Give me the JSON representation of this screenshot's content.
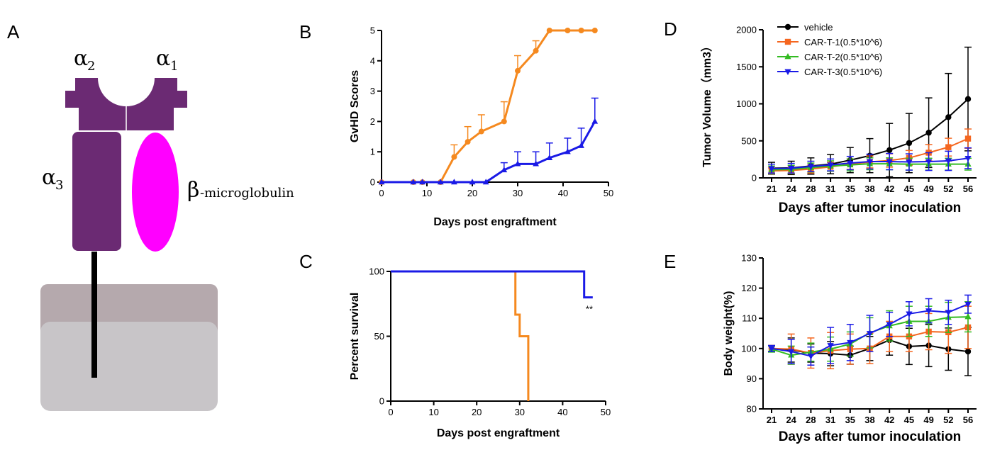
{
  "panels": {
    "A": "A",
    "B": "B",
    "C": "C",
    "D": "D",
    "E": "E"
  },
  "diagram": {
    "alpha1": "α",
    "alpha1_sub": "1",
    "alpha2": "α",
    "alpha2_sub": "2",
    "alpha3": "α",
    "alpha3_sub": "3",
    "beta_glyph": "β",
    "beta_text": "-microglobulin",
    "colors": {
      "heavy_chain": "#6b2a73",
      "beta2m": "#ff00ff",
      "membrane_top": "#b5a9ad",
      "membrane_bottom": "#c8c5c8",
      "stalk": "#000000"
    }
  },
  "chart_data": [
    {
      "id": "B",
      "type": "line",
      "xlabel": "Days post engraftment",
      "ylabel": "GvHD Scores",
      "xlim": [
        0,
        50
      ],
      "ylim": [
        0,
        5
      ],
      "xticks": [
        "0",
        "10",
        "20",
        "30",
        "40",
        "50"
      ],
      "yticks": [
        "0",
        "1",
        "2",
        "3",
        "4",
        "5"
      ],
      "series": [
        {
          "color": "#f5891f",
          "marker": "circle",
          "x": [
            0,
            7,
            9,
            13,
            16,
            19,
            22,
            27,
            30,
            34,
            37,
            41,
            44,
            47
          ],
          "y": [
            0,
            0,
            0,
            0,
            0.83,
            1.33,
            1.67,
            2.0,
            3.67,
            4.33,
            5,
            5,
            5,
            5
          ],
          "err": [
            0,
            0,
            0,
            0,
            0.4,
            0.5,
            0.55,
            0.65,
            0.5,
            0.33,
            0,
            0,
            0,
            0
          ]
        },
        {
          "color": "#1a1ae6",
          "marker": "triangle-up",
          "x": [
            0,
            7,
            9,
            13,
            16,
            20,
            23,
            27,
            30,
            34,
            37,
            41,
            44,
            47
          ],
          "y": [
            0,
            0,
            0,
            0,
            0,
            0,
            0,
            0.4,
            0.6,
            0.6,
            0.8,
            1.0,
            1.2,
            2.0
          ],
          "err": [
            0,
            0,
            0,
            0,
            0,
            0,
            0,
            0.24,
            0.4,
            0.4,
            0.49,
            0.45,
            0.58,
            0.77
          ]
        }
      ]
    },
    {
      "id": "C",
      "type": "line",
      "xlabel": "Days post engraftment",
      "ylabel": "Percent survival",
      "xlim": [
        0,
        50
      ],
      "ylim": [
        0,
        100
      ],
      "xticks": [
        "0",
        "10",
        "20",
        "30",
        "40",
        "50"
      ],
      "yticks": [
        "0",
        "50",
        "100"
      ],
      "annotation": "**",
      "series": [
        {
          "color": "#f5891f",
          "step": true,
          "x": [
            0,
            29,
            29,
            30,
            30,
            32,
            32
          ],
          "y": [
            100,
            100,
            66.7,
            66.7,
            50,
            50,
            0
          ]
        },
        {
          "color": "#1a1ae6",
          "step": true,
          "x": [
            0,
            45,
            45,
            47
          ],
          "y": [
            100,
            100,
            80,
            80
          ]
        }
      ]
    },
    {
      "id": "D",
      "type": "line",
      "xlabel": "Days after tumor inoculation",
      "ylabel": "Tumor Volume（mm3）",
      "categories": [
        "21",
        "24",
        "28",
        "31",
        "35",
        "38",
        "42",
        "45",
        "49",
        "52",
        "56"
      ],
      "ylim": [
        0,
        2000
      ],
      "yticks": [
        "0",
        "500",
        "1000",
        "1500",
        "2000"
      ],
      "legend_position": "top-left",
      "series": [
        {
          "name": "vehicle",
          "color": "#000000",
          "marker": "circle",
          "values": [
            130,
            135,
            160,
            185,
            240,
            300,
            375,
            470,
            610,
            820,
            1065
          ],
          "err": [
            80,
            90,
            110,
            130,
            170,
            230,
            360,
            400,
            470,
            590,
            700
          ]
        },
        {
          "name": "CAR-T-1(0.5*10^6)",
          "color": "#f5661f",
          "marker": "square",
          "values": [
            95,
            100,
            120,
            150,
            185,
            215,
            235,
            270,
            340,
            415,
            530
          ],
          "err": [
            40,
            45,
            55,
            60,
            70,
            80,
            90,
            100,
            110,
            120,
            130
          ]
        },
        {
          "name": "CAR-T-2(0.5*10^6)",
          "color": "#33bb22",
          "marker": "triangle-up",
          "values": [
            110,
            115,
            140,
            160,
            175,
            190,
            190,
            185,
            185,
            185,
            185
          ],
          "err": [
            50,
            55,
            60,
            70,
            80,
            80,
            80,
            80,
            80,
            80,
            80
          ]
        },
        {
          "name": "CAR-T-3(0.5*10^6)",
          "color": "#1a1ae6",
          "marker": "triangle-down",
          "values": [
            125,
            130,
            155,
            175,
            200,
            220,
            220,
            215,
            220,
            230,
            265
          ],
          "err": [
            60,
            65,
            70,
            80,
            90,
            100,
            110,
            110,
            120,
            130,
            140
          ]
        }
      ]
    },
    {
      "id": "E",
      "type": "line",
      "xlabel": "Days after tumor inoculation",
      "ylabel": "Body weight(%)",
      "categories": [
        "21",
        "24",
        "28",
        "31",
        "35",
        "38",
        "42",
        "45",
        "49",
        "52",
        "56"
      ],
      "ylim": [
        80,
        130
      ],
      "yticks": [
        "80",
        "90",
        "100",
        "110",
        "120",
        "130"
      ],
      "series": [
        {
          "name": "vehicle",
          "color": "#000000",
          "marker": "circle",
          "values": [
            100,
            99.5,
            98.5,
            98.3,
            97.8,
            100,
            102.8,
            100.7,
            101,
            99.8,
            99
          ],
          "err": [
            1,
            4,
            3,
            4,
            3,
            4,
            5,
            6,
            7,
            7,
            8
          ]
        },
        {
          "name": "CAR-T-1(0.5*10^6)",
          "color": "#f5661f",
          "marker": "square",
          "values": [
            100,
            99.8,
            98.5,
            99.3,
            99.8,
            100,
            104,
            104,
            105.6,
            105.4,
            107
          ],
          "err": [
            1,
            5,
            5,
            6,
            5,
            5,
            5,
            5,
            6,
            7,
            7
          ]
        },
        {
          "name": "CAR-T-2(0.5*10^6)",
          "color": "#33bb22",
          "marker": "triangle-up",
          "values": [
            99.8,
            97.8,
            98.8,
            99.8,
            101.5,
            105.2,
            107.5,
            109,
            109,
            110.3,
            110.5
          ],
          "err": [
            1,
            3,
            3,
            4,
            4,
            5,
            5,
            5,
            5,
            5,
            5
          ]
        },
        {
          "name": "CAR-T-3(0.5*10^6)",
          "color": "#1a1ae6",
          "marker": "triangle-down",
          "values": [
            100,
            99,
            97.5,
            101,
            102,
            105,
            108,
            111.5,
            112.5,
            112,
            114.7
          ],
          "err": [
            1,
            4,
            3,
            6,
            6,
            6,
            4,
            4,
            4,
            4,
            3
          ]
        }
      ]
    }
  ]
}
